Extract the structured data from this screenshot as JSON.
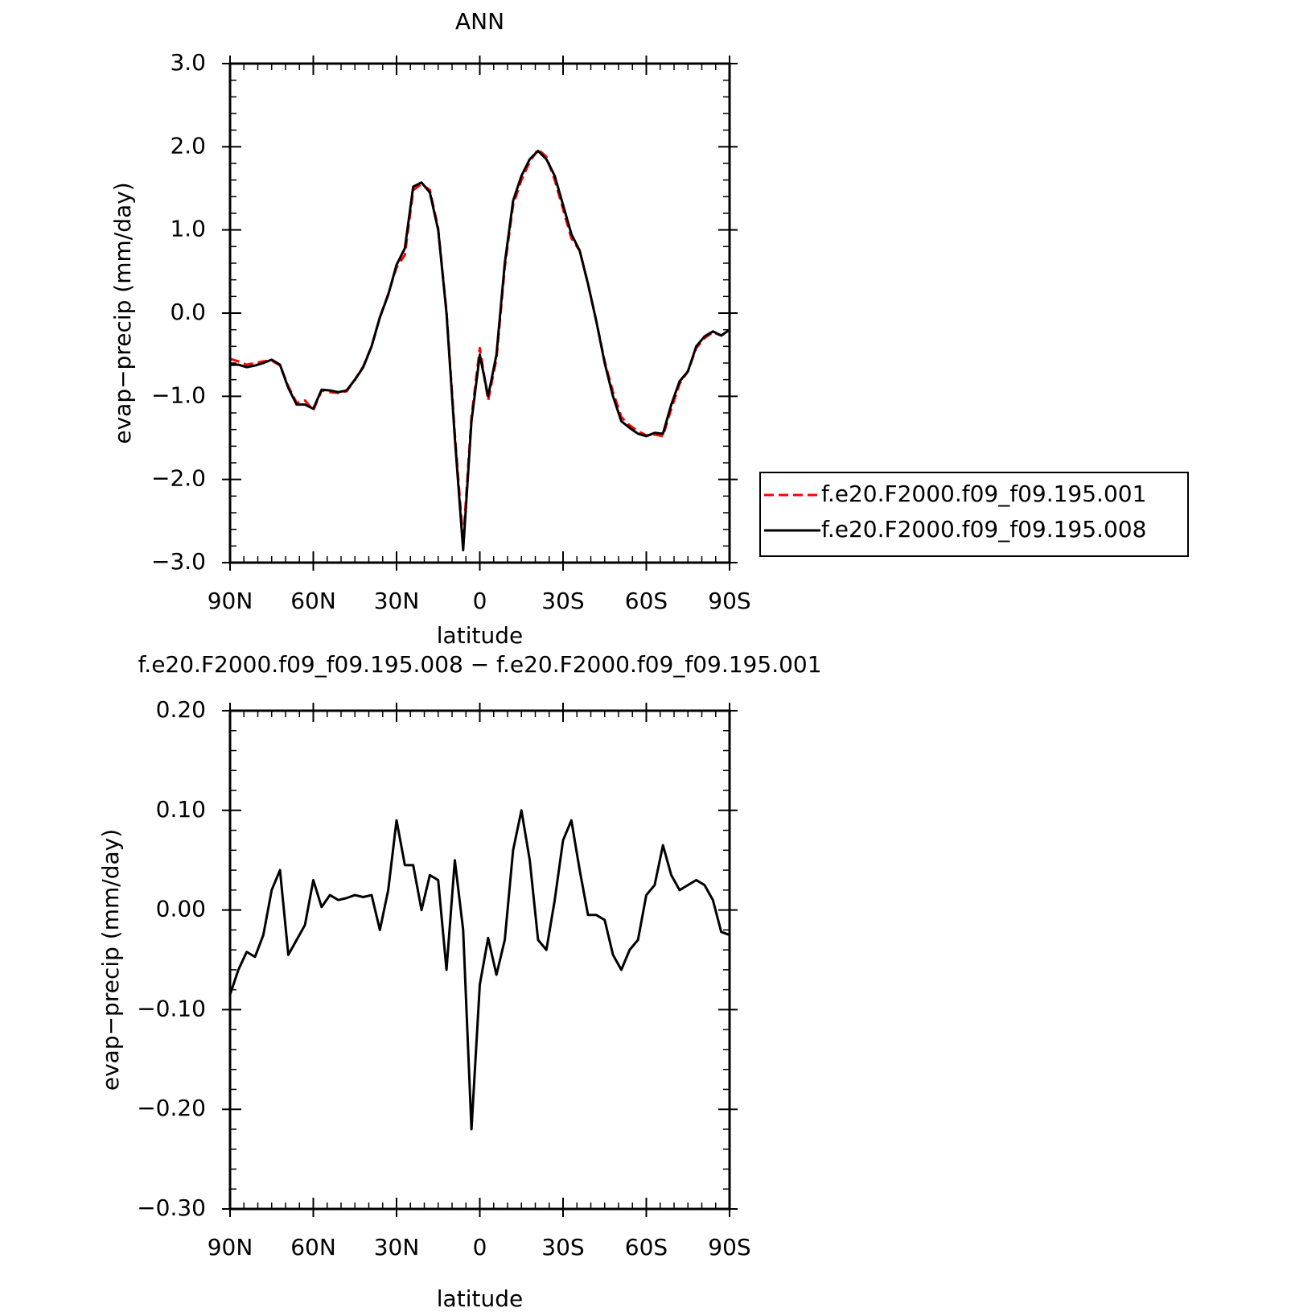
{
  "chart_data": [
    {
      "type": "line",
      "title": "ANN",
      "xlabel": "latitude",
      "ylabel": "evap−precip (mm/day)",
      "x": [
        90,
        87,
        84,
        81,
        78,
        75,
        72,
        69,
        66,
        63,
        60,
        57,
        54,
        51,
        48,
        45,
        42,
        39,
        36,
        33,
        30,
        27,
        24,
        21,
        18,
        15,
        12,
        9,
        6,
        3,
        0,
        -3,
        -6,
        -9,
        -12,
        -15,
        -18,
        -21,
        -24,
        -27,
        -30,
        -33,
        -36,
        -39,
        -42,
        -45,
        -48,
        -51,
        -54,
        -57,
        -60,
        -63,
        -66,
        -69,
        -72,
        -75,
        -78,
        -81,
        -84,
        -87,
        -90
      ],
      "series": [
        {
          "name": "f.e20.F2000.f09_f09.195.001",
          "color": "#ff0000",
          "linestyle": "dashed",
          "values": [
            -0.55,
            -0.58,
            -0.62,
            -0.6,
            -0.58,
            -0.57,
            -0.63,
            -0.88,
            -1.08,
            -1.05,
            -1.17,
            -0.93,
            -0.95,
            -0.96,
            -0.94,
            -0.8,
            -0.64,
            -0.4,
            -0.05,
            0.23,
            0.55,
            0.7,
            1.48,
            1.55,
            1.48,
            1.02,
            0.02,
            -1.45,
            -2.75,
            -1.25,
            -0.42,
            -1.05,
            -0.55,
            0.55,
            1.3,
            1.6,
            1.82,
            1.97,
            1.88,
            1.6,
            1.25,
            0.9,
            0.75,
            0.35,
            -0.1,
            -0.58,
            -0.95,
            -1.25,
            -1.35,
            -1.42,
            -1.47,
            -1.46,
            -1.48,
            -1.15,
            -0.85,
            -0.7,
            -0.42,
            -0.3,
            -0.23,
            -0.27,
            -0.21
          ]
        },
        {
          "name": "f.e20.F2000.f09_f09.195.008",
          "color": "#000000",
          "linestyle": "solid",
          "values": [
            -0.62,
            -0.62,
            -0.65,
            -0.63,
            -0.6,
            -0.56,
            -0.62,
            -0.9,
            -1.1,
            -1.1,
            -1.15,
            -0.92,
            -0.93,
            -0.95,
            -0.93,
            -0.8,
            -0.65,
            -0.4,
            -0.05,
            0.22,
            0.58,
            0.78,
            1.52,
            1.57,
            1.45,
            1.0,
            0.0,
            -1.5,
            -2.85,
            -1.3,
            -0.5,
            -1.0,
            -0.5,
            0.6,
            1.35,
            1.65,
            1.85,
            1.95,
            1.85,
            1.65,
            1.3,
            0.95,
            0.75,
            0.35,
            -0.1,
            -0.6,
            -1.0,
            -1.3,
            -1.38,
            -1.45,
            -1.48,
            -1.44,
            -1.45,
            -1.1,
            -0.82,
            -0.7,
            -0.4,
            -0.28,
            -0.22,
            -0.27,
            -0.2
          ]
        }
      ],
      "xlim": [
        90,
        -90
      ],
      "xticks": [
        {
          "value": 90,
          "label": "90N"
        },
        {
          "value": 60,
          "label": "60N"
        },
        {
          "value": 30,
          "label": "30N"
        },
        0,
        {
          "value": -30,
          "label": "30S"
        },
        {
          "value": -60,
          "label": "60S"
        },
        {
          "value": -90,
          "label": "90S"
        }
      ],
      "ylim": [
        -3,
        3
      ],
      "yticks": [
        {
          "value": 3,
          "label": "3.0"
        },
        {
          "value": 2,
          "label": "2.0"
        },
        {
          "value": 1,
          "label": "1.0"
        },
        {
          "value": 0,
          "label": "0.0"
        },
        {
          "value": -1,
          "label": "−1.0"
        },
        {
          "value": -2,
          "label": "−2.0"
        },
        {
          "value": -3,
          "label": "−3.0"
        }
      ],
      "legend": "right"
    },
    {
      "type": "line",
      "title": "f.e20.F2000.f09_f09.195.008 − f.e20.F2000.f09_f09.195.001",
      "xlabel": "latitude",
      "ylabel": "evap−precip (mm/day)",
      "x": [
        90,
        87,
        84,
        81,
        78,
        75,
        72,
        69,
        66,
        63,
        60,
        57,
        54,
        51,
        48,
        45,
        42,
        39,
        36,
        33,
        30,
        27,
        24,
        21,
        18,
        15,
        12,
        9,
        6,
        3,
        0,
        -3,
        -6,
        -9,
        -12,
        -15,
        -18,
        -21,
        -24,
        -27,
        -30,
        -33,
        -36,
        -39,
        -42,
        -45,
        -48,
        -51,
        -54,
        -57,
        -60,
        -63,
        -66,
        -69,
        -72,
        -75,
        -78,
        -81,
        -84,
        -87,
        -90
      ],
      "series": [
        {
          "color": "#000000",
          "linestyle": "solid",
          "values": [
            -0.085,
            -0.06,
            -0.042,
            -0.047,
            -0.025,
            0.02,
            0.04,
            -0.045,
            -0.03,
            -0.015,
            0.03,
            0.003,
            0.015,
            0.01,
            0.012,
            0.015,
            0.013,
            0.015,
            -0.02,
            0.02,
            0.09,
            0.045,
            0.045,
            0.0,
            0.035,
            0.03,
            -0.06,
            0.05,
            -0.02,
            -0.22,
            -0.075,
            -0.028,
            -0.065,
            -0.03,
            0.06,
            0.1,
            0.05,
            -0.03,
            -0.04,
            0.01,
            0.07,
            0.09,
            0.04,
            -0.005,
            -0.005,
            -0.01,
            -0.045,
            -0.06,
            -0.04,
            -0.03,
            0.015,
            0.025,
            0.065,
            0.035,
            0.02,
            0.025,
            0.03,
            0.025,
            0.01,
            -0.022,
            -0.025
          ]
        }
      ],
      "xlim": [
        90,
        -90
      ],
      "xticks": [
        {
          "value": 90,
          "label": "90N"
        },
        {
          "value": 60,
          "label": "60N"
        },
        {
          "value": 30,
          "label": "30N"
        },
        0,
        {
          "value": -30,
          "label": "30S"
        },
        {
          "value": -60,
          "label": "60S"
        },
        {
          "value": -90,
          "label": "90S"
        }
      ],
      "ylim": [
        -0.3,
        0.2
      ],
      "yticks": [
        {
          "value": 0.2,
          "label": "0.20"
        },
        {
          "value": 0.1,
          "label": "0.10"
        },
        {
          "value": 0,
          "label": "0.00"
        },
        {
          "value": -0.1,
          "label": "−0.10"
        },
        {
          "value": -0.2,
          "label": "−0.20"
        },
        {
          "value": -0.3,
          "label": "−0.30"
        }
      ]
    }
  ]
}
